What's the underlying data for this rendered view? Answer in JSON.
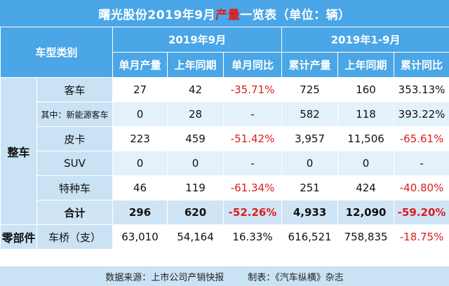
{
  "title": {
    "prefix": "曙光股份2019年9月",
    "highlight": "产量",
    "suffix": "一览表（单位：辆）"
  },
  "header": {
    "category": "车型类别",
    "period_month": "2019年9月",
    "period_ytd": "2019年1-9月",
    "columns": [
      "单月产量",
      "上年同期",
      "单月同比",
      "累计产量",
      "上年同期",
      "累计同比"
    ]
  },
  "groups": {
    "vehicle": "整车",
    "parts": "零部件"
  },
  "rows": [
    {
      "name": "客车",
      "month": "27",
      "month_prev": "42",
      "month_yoy": "-35.71%",
      "ytd": "725",
      "ytd_prev": "160",
      "ytd_yoy": "353.13%"
    },
    {
      "name": "其中：新能源客车",
      "month": "0",
      "month_prev": "28",
      "month_yoy": "-",
      "ytd": "582",
      "ytd_prev": "118",
      "ytd_yoy": "393.22%"
    },
    {
      "name": "皮卡",
      "month": "223",
      "month_prev": "459",
      "month_yoy": "-51.42%",
      "ytd": "3,957",
      "ytd_prev": "11,506",
      "ytd_yoy": "-65.61%"
    },
    {
      "name": "SUV",
      "month": "0",
      "month_prev": "0",
      "month_yoy": "-",
      "ytd": "0",
      "ytd_prev": "0",
      "ytd_yoy": "-"
    },
    {
      "name": "特种车",
      "month": "46",
      "month_prev": "119",
      "month_yoy": "-61.34%",
      "ytd": "251",
      "ytd_prev": "424",
      "ytd_yoy": "-40.80%"
    }
  ],
  "total": {
    "name": "合计",
    "month": "296",
    "month_prev": "620",
    "month_yoy": "-52.26%",
    "ytd": "4,933",
    "ytd_prev": "12,090",
    "ytd_yoy": "-59.20%"
  },
  "parts_row": {
    "name": "车桥（支）",
    "month": "63,010",
    "month_prev": "54,164",
    "month_yoy": "16.33%",
    "ytd": "616,521",
    "ytd_prev": "758,835",
    "ytd_yoy": "-18.75%"
  },
  "footer": {
    "source": "数据来源：上市公司产销快报",
    "maker": "制表：《汽车纵横》杂志"
  },
  "colors": {
    "header_blue": "#4aa6e6",
    "light_blue": "#c9e3f5",
    "negative_red": "#e01b1b"
  }
}
